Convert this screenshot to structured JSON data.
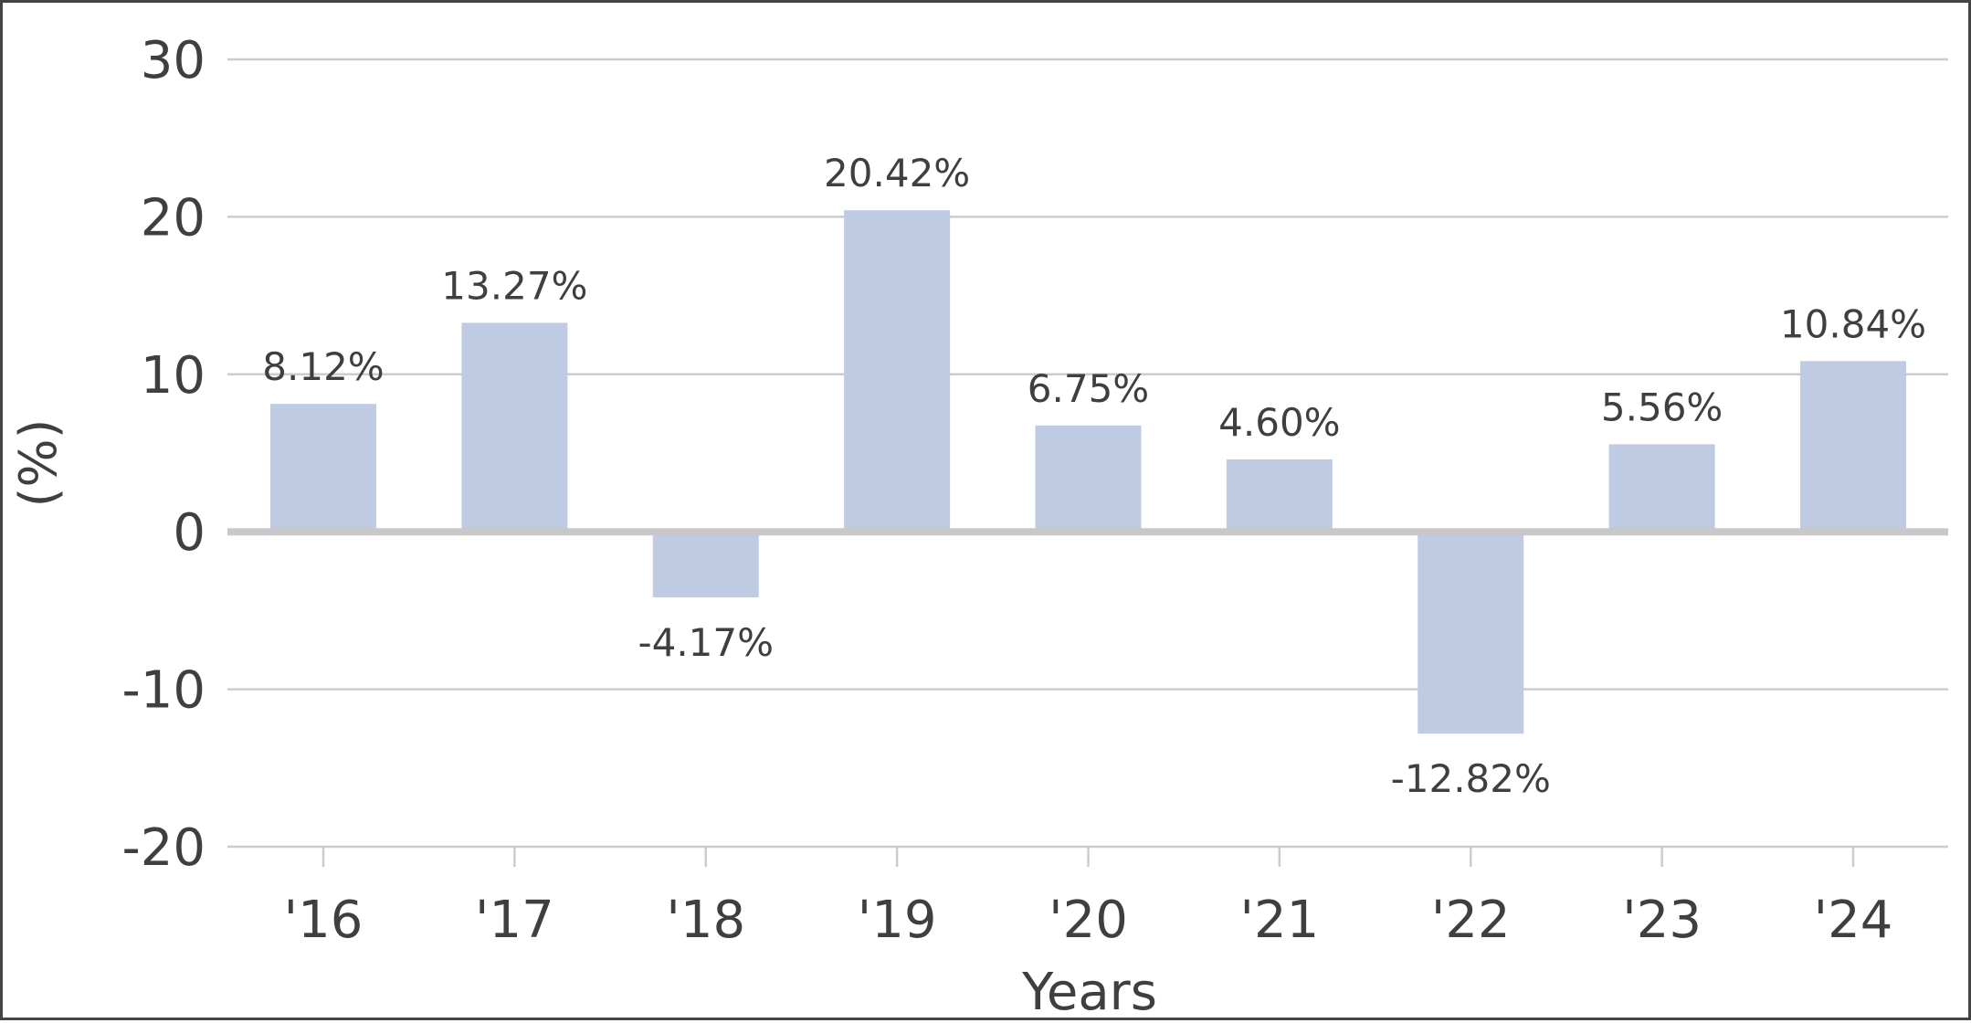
{
  "chart_data": {
    "type": "bar",
    "title": "",
    "xlabel": "Years",
    "ylabel": "(%)",
    "categories": [
      "'16",
      "'17",
      "'18",
      "'19",
      "'20",
      "'21",
      "'22",
      "'23",
      "'24"
    ],
    "values": [
      8.12,
      13.27,
      -4.17,
      20.42,
      6.75,
      4.6,
      -12.82,
      5.56,
      10.84
    ],
    "value_labels": [
      "8.12%",
      "13.27%",
      "-4.17%",
      "20.42%",
      "6.75%",
      "4.60%",
      "-12.82%",
      "5.56%",
      "10.84%"
    ],
    "ylim": [
      -20,
      30
    ],
    "yticks": [
      30,
      20,
      10,
      0,
      -10,
      -20
    ],
    "ytick_labels": [
      "30",
      "20",
      "10",
      "0",
      "-10",
      "-20"
    ],
    "grid": true,
    "legend": false,
    "colors": {
      "bar": "#bfcbe3",
      "grid": "#cccccc",
      "zero_line": "#c8c8c8",
      "text": "#3f3f3f",
      "frame": "#444444"
    }
  }
}
